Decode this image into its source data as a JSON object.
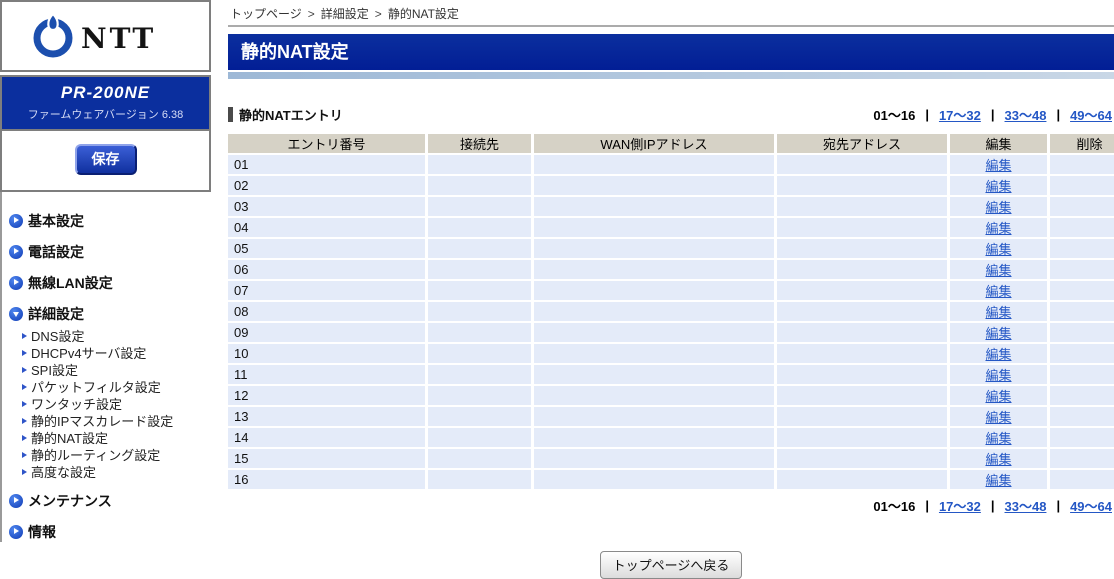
{
  "branding": {
    "logo_text": "NTT",
    "model": "PR-200NE",
    "firmware_label": "ファームウェアバージョン",
    "firmware_version": "6.38",
    "save_button": "保存"
  },
  "sidebar": {
    "items": [
      {
        "label": "基本設定",
        "state": "collapsed"
      },
      {
        "label": "電話設定",
        "state": "collapsed"
      },
      {
        "label": "無線LAN設定",
        "state": "collapsed"
      },
      {
        "label": "詳細設定",
        "state": "expanded",
        "children": [
          "DNS設定",
          "DHCPv4サーバ設定",
          "SPI設定",
          "パケットフィルタ設定",
          "ワンタッチ設定",
          "静的IPマスカレード設定",
          "静的NAT設定",
          "静的ルーティング設定",
          "高度な設定"
        ]
      },
      {
        "label": "メンテナンス",
        "state": "collapsed"
      },
      {
        "label": "情報",
        "state": "collapsed"
      }
    ]
  },
  "breadcrumb": {
    "items": [
      "トップページ",
      "詳細設定",
      "静的NAT設定"
    ],
    "separator": ">"
  },
  "page": {
    "title": "静的NAT設定"
  },
  "section": {
    "title": "静的NATエントリ"
  },
  "pagination": {
    "current": "01〜16",
    "links": [
      "17〜32",
      "33〜48",
      "49〜64"
    ],
    "separator": "|"
  },
  "table": {
    "headers": [
      "エントリ番号",
      "接続先",
      "WAN側IPアドレス",
      "宛先アドレス",
      "編集",
      "削除"
    ],
    "edit_label": "編集",
    "entries": [
      "01",
      "02",
      "03",
      "04",
      "05",
      "06",
      "07",
      "08",
      "09",
      "10",
      "11",
      "12",
      "13",
      "14",
      "15",
      "16"
    ]
  },
  "footer": {
    "back_button": "トップページへ戻る"
  },
  "colors": {
    "title_navy": "#0b2f9e",
    "band_blue": "#c9d7e6",
    "header_bg": "#d6d2c6",
    "row_bg": "#e4ebf9",
    "link_blue": "#2457c5"
  }
}
